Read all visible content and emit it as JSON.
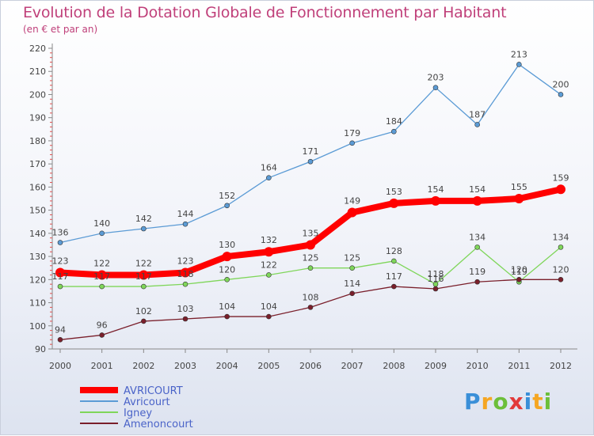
{
  "chart_data": {
    "type": "line",
    "title": "Evolution de la Dotation Globale de Fonctionnement par Habitant",
    "subtitle": "(en € et par an)",
    "xlabel": "",
    "ylabel": "",
    "ylim": [
      90,
      220
    ],
    "yticks": [
      90,
      100,
      110,
      120,
      130,
      140,
      150,
      160,
      170,
      180,
      190,
      200,
      210,
      220
    ],
    "x": [
      "2000",
      "2001",
      "2002",
      "2003",
      "2004",
      "2005",
      "2006",
      "2007",
      "2008",
      "2009",
      "2010",
      "2011",
      "2012"
    ],
    "series": [
      {
        "name": "AVRICOURT",
        "color": "#ff0000",
        "bold": true,
        "values": [
          123,
          122,
          122,
          123,
          130,
          132,
          135,
          149,
          153,
          154,
          154,
          155,
          159
        ]
      },
      {
        "name": "Avricourt",
        "color": "#5b9bd5",
        "bold": false,
        "values": [
          136,
          140,
          142,
          144,
          152,
          164,
          171,
          179,
          184,
          203,
          187,
          213,
          200
        ]
      },
      {
        "name": "Igney",
        "color": "#7fd65a",
        "bold": false,
        "values": [
          117,
          117,
          117,
          118,
          120,
          122,
          125,
          125,
          128,
          118,
          134,
          119,
          134
        ]
      },
      {
        "name": "Amenoncourt",
        "color": "#7a1f2b",
        "bold": false,
        "values": [
          94,
          96,
          102,
          103,
          104,
          104,
          108,
          114,
          117,
          116,
          119,
          120,
          120
        ]
      }
    ],
    "grid": false,
    "legend_position": "bottom-left"
  },
  "logo": {
    "text": "Proxiti",
    "letters": [
      {
        "ch": "P",
        "color": "#3a8fd8"
      },
      {
        "ch": "r",
        "color": "#f5a623"
      },
      {
        "ch": "o",
        "color": "#6cbf3a"
      },
      {
        "ch": "x",
        "color": "#e23a3a"
      },
      {
        "ch": "i",
        "color": "#3a8fd8"
      },
      {
        "ch": "t",
        "color": "#f5a623"
      },
      {
        "ch": "i",
        "color": "#6cbf3a"
      }
    ]
  }
}
